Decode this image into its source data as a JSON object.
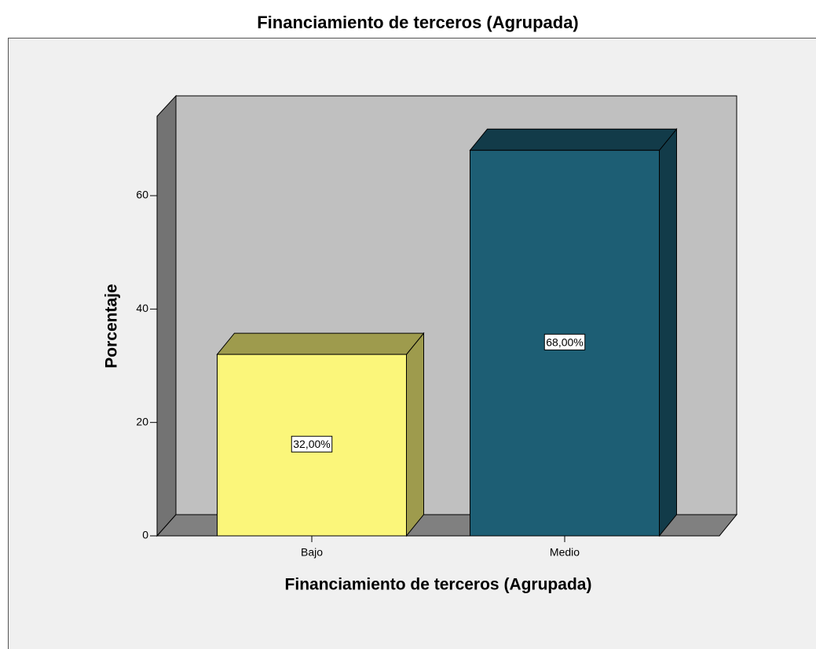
{
  "chart_data": {
    "type": "bar3d",
    "title": "Financiamiento de terceros (Agrupada)",
    "x_label": "Financiamiento de terceros (Agrupada)",
    "y_label": "Porcentaje",
    "categories": [
      "Bajo",
      "Medio"
    ],
    "values": [
      32,
      68
    ],
    "value_labels": [
      "32,00%",
      "68,00%"
    ],
    "colors": [
      "#fbf67a",
      "#1d5e74"
    ],
    "ylim": [
      0,
      74
    ],
    "yticks": [
      0,
      20,
      40,
      60
    ]
  }
}
